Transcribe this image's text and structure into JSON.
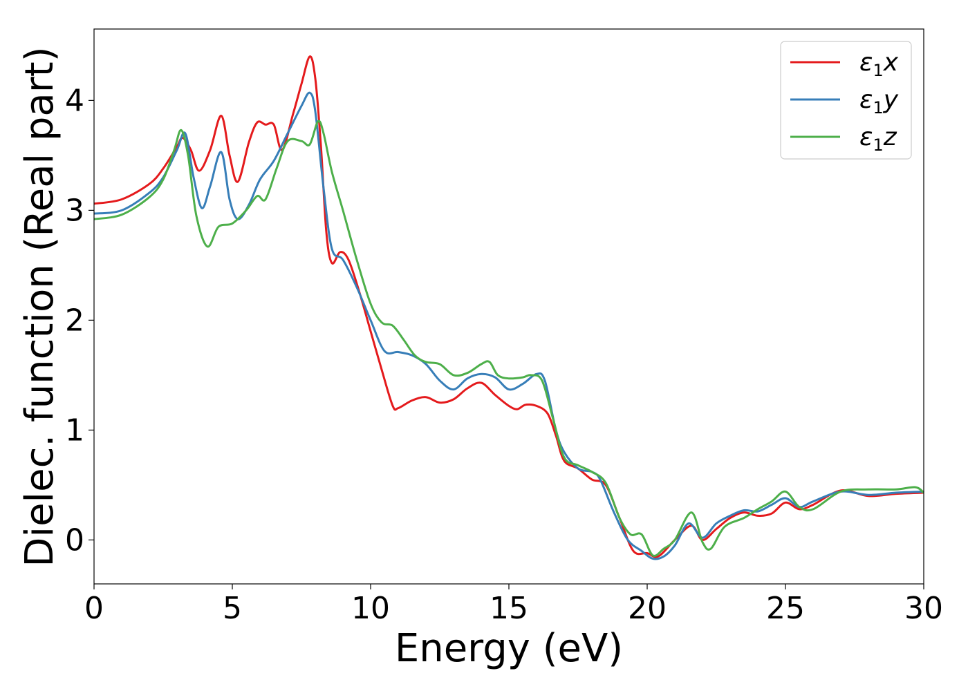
{
  "chart_data": {
    "type": "line",
    "xlabel": "Energy (eV)",
    "ylabel": "Dielec. function (Real part)",
    "xlim": [
      0,
      30
    ],
    "ylim": [
      -0.4,
      4.65
    ],
    "xticks": [
      0,
      5,
      10,
      15,
      20,
      25,
      30
    ],
    "yticks": [
      0,
      1,
      2,
      3,
      4
    ],
    "grid": false,
    "legend_position": "top-right",
    "series": [
      {
        "name": "ε1x",
        "legend": {
          "base": "ε",
          "sub": "1",
          "var": "x"
        },
        "color": "#e41a1c",
        "x": [
          0,
          1,
          2,
          2.5,
          3.0,
          3.2,
          3.5,
          3.8,
          4.2,
          4.6,
          4.9,
          5.2,
          5.6,
          5.9,
          6.2,
          6.5,
          6.8,
          7.2,
          7.5,
          7.8,
          8.0,
          8.2,
          8.4,
          8.6,
          8.9,
          9.2,
          9.6,
          10.0,
          10.4,
          10.8,
          11.0,
          11.5,
          12.0,
          12.5,
          13.0,
          13.5,
          14.0,
          14.5,
          15.0,
          15.3,
          15.6,
          16.0,
          16.4,
          16.7,
          17.0,
          17.5,
          18.0,
          18.5,
          19.0,
          19.5,
          20.0,
          20.4,
          21.0,
          21.6,
          22.0,
          22.5,
          23.0,
          23.5,
          24.0,
          24.5,
          25.0,
          25.5,
          26.0,
          27.0,
          28.0,
          29.0,
          30.0
        ],
        "y": [
          3.06,
          3.1,
          3.24,
          3.38,
          3.58,
          3.66,
          3.55,
          3.36,
          3.55,
          3.86,
          3.5,
          3.26,
          3.62,
          3.8,
          3.78,
          3.78,
          3.55,
          3.88,
          4.15,
          4.4,
          4.2,
          3.6,
          2.8,
          2.52,
          2.62,
          2.55,
          2.25,
          1.9,
          1.55,
          1.22,
          1.2,
          1.27,
          1.3,
          1.25,
          1.28,
          1.38,
          1.43,
          1.32,
          1.22,
          1.19,
          1.23,
          1.22,
          1.15,
          0.95,
          0.72,
          0.65,
          0.55,
          0.5,
          0.2,
          -0.1,
          -0.12,
          -0.15,
          0.0,
          0.13,
          0.0,
          0.1,
          0.2,
          0.25,
          0.22,
          0.24,
          0.34,
          0.28,
          0.32,
          0.45,
          0.4,
          0.42,
          0.43
        ]
      },
      {
        "name": "ε1y",
        "legend": {
          "base": "ε",
          "sub": "1",
          "var": "y"
        },
        "color": "#377eb8",
        "x": [
          0,
          1,
          2,
          2.5,
          3.0,
          3.3,
          3.6,
          3.9,
          4.2,
          4.6,
          4.9,
          5.2,
          5.6,
          6.0,
          6.5,
          7.0,
          7.5,
          7.8,
          8.0,
          8.3,
          8.6,
          9.0,
          9.5,
          10.0,
          10.5,
          11.0,
          11.5,
          12.0,
          12.5,
          13.0,
          13.5,
          14.0,
          14.5,
          15.0,
          15.5,
          16.0,
          16.3,
          16.7,
          17.0,
          17.5,
          18.0,
          18.3,
          18.8,
          19.3,
          19.8,
          20.2,
          20.6,
          21.0,
          21.5,
          22.0,
          22.5,
          23.0,
          23.5,
          24.0,
          24.5,
          25.0,
          25.5,
          26.0,
          27.0,
          28.0,
          29.0,
          30.0
        ],
        "y": [
          2.97,
          3.0,
          3.16,
          3.3,
          3.55,
          3.7,
          3.3,
          3.02,
          3.22,
          3.53,
          3.1,
          2.92,
          3.05,
          3.28,
          3.45,
          3.7,
          3.95,
          4.07,
          3.9,
          3.2,
          2.65,
          2.55,
          2.3,
          2.0,
          1.72,
          1.71,
          1.68,
          1.6,
          1.45,
          1.37,
          1.47,
          1.51,
          1.48,
          1.37,
          1.42,
          1.51,
          1.45,
          1.0,
          0.8,
          0.65,
          0.62,
          0.55,
          0.25,
          0.0,
          -0.1,
          -0.17,
          -0.15,
          -0.05,
          0.15,
          0.02,
          0.15,
          0.22,
          0.27,
          0.26,
          0.32,
          0.38,
          0.3,
          0.35,
          0.44,
          0.41,
          0.43,
          0.44
        ]
      },
      {
        "name": "ε1z",
        "legend": {
          "base": "ε",
          "sub": "1",
          "var": "z"
        },
        "color": "#4daf4a",
        "x": [
          0,
          1,
          2,
          2.5,
          2.9,
          3.15,
          3.4,
          3.7,
          4.1,
          4.5,
          5.0,
          5.5,
          5.9,
          6.2,
          6.6,
          7.0,
          7.5,
          7.8,
          8.1,
          8.3,
          8.6,
          9.0,
          9.5,
          10.0,
          10.4,
          10.8,
          11.2,
          11.6,
          12.0,
          12.5,
          13.0,
          13.5,
          14.0,
          14.3,
          14.6,
          15.0,
          15.5,
          15.8,
          16.2,
          16.6,
          17.0,
          17.5,
          18.0,
          18.5,
          19.0,
          19.4,
          19.8,
          20.2,
          20.6,
          21.0,
          21.6,
          22.0,
          22.3,
          22.8,
          23.5,
          24.0,
          24.5,
          25.0,
          25.5,
          26.0,
          27.0,
          28.0,
          29.0,
          29.7,
          30.0
        ],
        "y": [
          2.92,
          2.96,
          3.12,
          3.28,
          3.55,
          3.73,
          3.5,
          2.95,
          2.67,
          2.85,
          2.88,
          3.0,
          3.13,
          3.1,
          3.38,
          3.63,
          3.63,
          3.6,
          3.81,
          3.7,
          3.35,
          3.0,
          2.55,
          2.15,
          1.98,
          1.95,
          1.82,
          1.68,
          1.62,
          1.6,
          1.5,
          1.52,
          1.6,
          1.62,
          1.5,
          1.47,
          1.48,
          1.5,
          1.45,
          1.1,
          0.75,
          0.68,
          0.62,
          0.52,
          0.2,
          0.05,
          0.05,
          -0.14,
          -0.08,
          0.0,
          0.25,
          -0.02,
          -0.08,
          0.12,
          0.2,
          0.28,
          0.35,
          0.44,
          0.3,
          0.28,
          0.44,
          0.46,
          0.46,
          0.48,
          0.43
        ]
      }
    ]
  }
}
